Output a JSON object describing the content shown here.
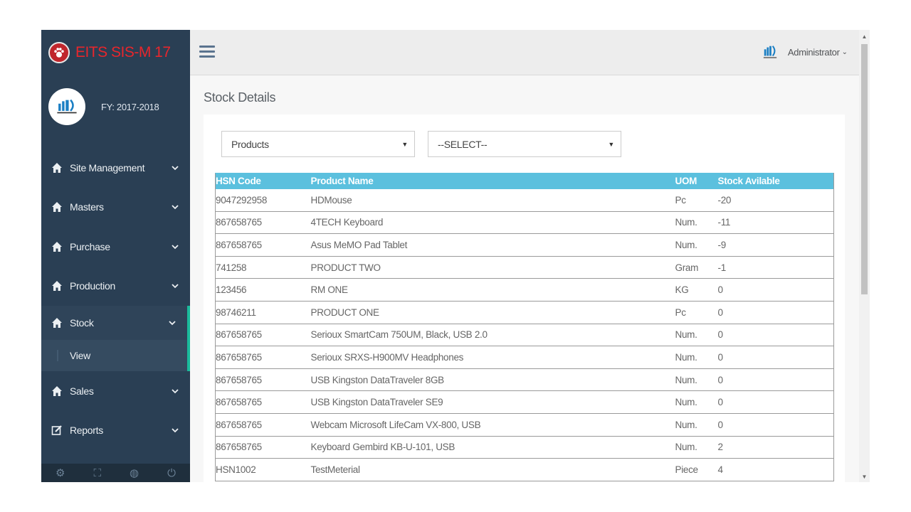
{
  "app": {
    "title": "EITS SIS-M 17",
    "fiscal_year": "FY: 2017-2018"
  },
  "sidebar": {
    "items": [
      {
        "label": "Site Management",
        "icon": "home-icon"
      },
      {
        "label": "Masters",
        "icon": "home-icon"
      },
      {
        "label": "Purchase",
        "icon": "home-icon"
      },
      {
        "label": "Production",
        "icon": "home-icon"
      },
      {
        "label": "Stock",
        "icon": "home-icon",
        "active": true
      },
      {
        "label": "Sales",
        "icon": "home-icon"
      },
      {
        "label": "Reports",
        "icon": "edit-icon"
      }
    ],
    "submenu": {
      "label": "View"
    },
    "footer_icons": [
      "settings-icon",
      "fullscreen-icon",
      "lock-icon",
      "power-icon"
    ]
  },
  "topbar": {
    "user_name": "Administrator"
  },
  "page": {
    "title": "Stock Details"
  },
  "filters": {
    "category_value": "Products",
    "item_value": "--SELECT--"
  },
  "table": {
    "headers": [
      "HSN Code",
      "Product Name",
      "UOM",
      "Stock Avilable"
    ],
    "rows": [
      [
        "9047292958",
        "HDMouse",
        "Pc",
        "-20"
      ],
      [
        "867658765",
        "4TECH Keyboard",
        "Num.",
        "-11"
      ],
      [
        "867658765",
        "Asus MeMO Pad Tablet",
        "Num.",
        "-9"
      ],
      [
        "741258",
        "PRODUCT TWO",
        "Gram",
        "-1"
      ],
      [
        "123456",
        "RM ONE",
        "KG",
        "0"
      ],
      [
        "98746211",
        "PRODUCT ONE",
        "Pc",
        "0"
      ],
      [
        "867658765",
        "Serioux SmartCam 750UM, Black, USB 2.0",
        "Num.",
        "0"
      ],
      [
        "867658765",
        "Serioux SRXS-H900MV Headphones",
        "Num.",
        "0"
      ],
      [
        "867658765",
        "USB Kingston DataTraveler 8GB",
        "Num.",
        "0"
      ],
      [
        "867658765",
        "USB Kingston DataTraveler SE9",
        "Num.",
        "0"
      ],
      [
        "867658765",
        "Webcam Microsoft LifeCam VX-800, USB",
        "Num.",
        "0"
      ],
      [
        "867658765",
        "Keyboard Gembird KB-U-101, USB",
        "Num.",
        "2"
      ],
      [
        "HSN1002",
        "TestMeterial",
        "Piece",
        "4"
      ]
    ]
  },
  "colors": {
    "sidebar_bg": "#2a3f54",
    "brand_red": "#e8262c",
    "table_header": "#5bc0de",
    "active_accent": "#1abb9c"
  }
}
